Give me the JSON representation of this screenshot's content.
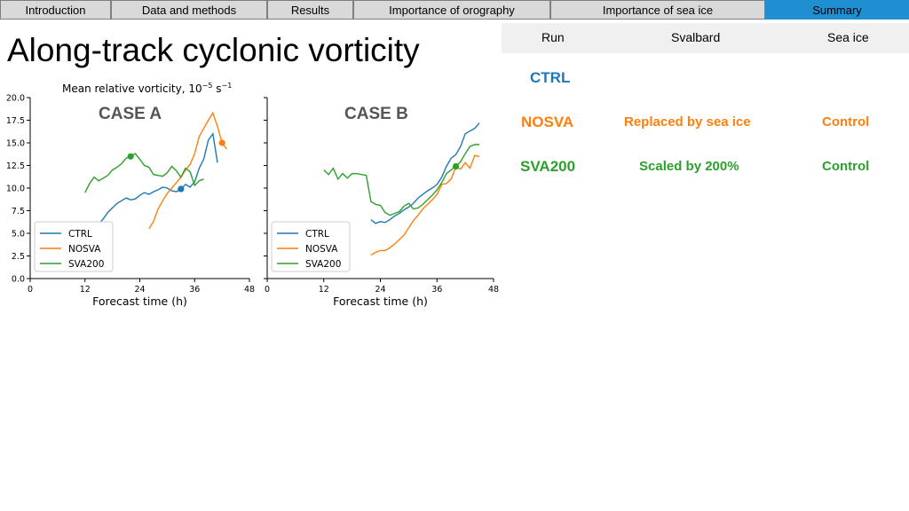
{
  "nav": {
    "tabs": [
      {
        "label": "Introduction"
      },
      {
        "label": "Data and methods"
      },
      {
        "label": "Results"
      },
      {
        "label": "Importance of orography"
      },
      {
        "label": "Importance of sea ice"
      },
      {
        "label": "Summary"
      }
    ],
    "active_index": 5
  },
  "slide": {
    "title": "Along-track cyclonic vorticity"
  },
  "plot_title": {
    "main": "Mean relative vorticity, 10",
    "exp": "−5",
    "unit": " s",
    "unit_exp": "−1"
  },
  "table": {
    "headers": [
      "Run",
      "Svalbard",
      "Sea ice"
    ],
    "rows": [
      {
        "run": "CTRL",
        "svalbard": "",
        "sea_ice": "",
        "color": "#1f77b4"
      },
      {
        "run": "NOSVA",
        "svalbard": "Replaced by sea ice",
        "sea_ice": "Control",
        "color": "#ff7f0e"
      },
      {
        "run": "SVA200",
        "svalbard": "Scaled by 200%",
        "sea_ice": "Control",
        "color": "#2ca02c"
      }
    ]
  },
  "colors": {
    "CTRL": "#1f77b4",
    "NOSVA": "#ff7f0e",
    "SVA200": "#2ca02c",
    "accent_tab": "#1f8fd1"
  },
  "chart_data": [
    {
      "type": "line",
      "title": "Mean relative vorticity, 10^−5 s^−1",
      "annotation": "CASE A",
      "xlabel": "Forecast time (h)",
      "ylabel": "",
      "xlim": [
        0,
        48
      ],
      "ylim": [
        0,
        20
      ],
      "xticks": [
        0,
        12,
        24,
        36,
        48
      ],
      "yticks": [
        0.0,
        2.5,
        5.0,
        7.5,
        10.0,
        12.5,
        15.0,
        17.5,
        20.0
      ],
      "legend": "lower-left",
      "series": [
        {
          "name": "CTRL",
          "marker_index": 20,
          "x": [
            13,
            14,
            15,
            16,
            17,
            18,
            19,
            20,
            21,
            22,
            23,
            24,
            25,
            26,
            27,
            28,
            29,
            30,
            31,
            32,
            33,
            34,
            35,
            36,
            37,
            38,
            39,
            40,
            41,
            42,
            43
          ],
          "y": [
            5.3,
            5.6,
            6.0,
            6.6,
            7.3,
            7.8,
            8.3,
            8.6,
            8.9,
            8.7,
            8.8,
            9.2,
            9.5,
            9.3,
            9.6,
            9.8,
            10.1,
            10.0,
            9.7,
            9.6,
            9.9,
            10.4,
            10.1,
            10.7,
            12.2,
            13.2,
            15.3,
            16.0,
            12.8,
            null,
            null
          ]
        },
        {
          "name": "NOSVA",
          "marker_index": 16,
          "x": [
            26,
            27,
            28,
            29,
            30,
            31,
            32,
            33,
            34,
            35,
            36,
            37,
            38,
            39,
            40,
            41,
            42,
            43,
            44
          ],
          "y": [
            5.5,
            6.3,
            7.7,
            8.6,
            9.4,
            10.0,
            10.6,
            11.2,
            12.0,
            12.6,
            13.8,
            15.7,
            16.6,
            17.5,
            18.3,
            16.8,
            15.0,
            14.3,
            null
          ]
        },
        {
          "name": "SVA200",
          "marker_index": 10,
          "x": [
            12,
            13,
            14,
            15,
            16,
            17,
            18,
            19,
            20,
            21,
            22,
            23,
            24,
            25,
            26,
            27,
            28,
            29,
            30,
            31,
            32,
            33,
            34,
            35,
            36,
            37,
            38,
            39,
            40,
            41,
            42
          ],
          "y": [
            9.5,
            10.5,
            11.2,
            10.8,
            11.1,
            11.4,
            12.0,
            12.3,
            12.7,
            13.3,
            13.5,
            13.8,
            13.2,
            12.5,
            12.3,
            11.5,
            11.4,
            11.3,
            11.7,
            12.4,
            11.9,
            11.2,
            12.2,
            11.8,
            10.3,
            10.8,
            11.0,
            null,
            null,
            null,
            null
          ]
        }
      ]
    },
    {
      "type": "line",
      "annotation": "CASE B",
      "xlabel": "Forecast time (h)",
      "ylabel": "",
      "xlim": [
        0,
        48
      ],
      "ylim": [
        0,
        20
      ],
      "xticks": [
        0,
        12,
        24,
        36,
        48
      ],
      "yticks": [],
      "legend": "lower-left",
      "series": [
        {
          "name": "CTRL",
          "marker_index": 26,
          "x": [
            22,
            23,
            24,
            25,
            26,
            27,
            28,
            29,
            30,
            31,
            32,
            33,
            34,
            35,
            36,
            37,
            38,
            39,
            40,
            41,
            42,
            43,
            44,
            45,
            46,
            47,
            48
          ],
          "y": [
            6.5,
            6.1,
            6.3,
            6.2,
            6.5,
            6.9,
            7.2,
            7.6,
            7.9,
            8.3,
            8.9,
            9.3,
            9.7,
            10.0,
            10.4,
            11.2,
            12.4,
            13.3,
            13.7,
            14.6,
            16.0,
            16.3,
            16.6,
            17.2,
            null,
            null,
            null
          ]
        },
        {
          "name": "NOSVA",
          "marker_index": 25,
          "x": [
            22,
            23,
            24,
            25,
            26,
            27,
            28,
            29,
            30,
            31,
            32,
            33,
            34,
            35,
            36,
            37,
            38,
            39,
            40,
            41,
            42,
            43,
            44,
            45,
            46,
            47
          ],
          "y": [
            2.6,
            2.9,
            3.1,
            3.1,
            3.4,
            3.8,
            4.3,
            4.8,
            5.6,
            6.4,
            7.0,
            7.7,
            8.2,
            8.7,
            9.3,
            10.4,
            10.5,
            11.0,
            12.3,
            12.1,
            12.8,
            12.2,
            13.6,
            13.5,
            null,
            null
          ]
        },
        {
          "name": "SVA200",
          "marker_index": 28,
          "x": [
            12,
            13,
            14,
            15,
            16,
            17,
            18,
            19,
            20,
            21,
            22,
            23,
            24,
            25,
            26,
            27,
            28,
            29,
            30,
            31,
            32,
            33,
            34,
            35,
            36,
            37,
            38,
            39,
            40,
            41,
            42,
            43,
            44,
            45,
            46,
            47,
            48
          ],
          "y": [
            12.0,
            11.5,
            12.2,
            11.0,
            11.6,
            11.1,
            11.6,
            11.6,
            11.5,
            11.4,
            8.5,
            8.2,
            8.1,
            7.3,
            7.0,
            7.2,
            7.4,
            8.0,
            8.3,
            7.7,
            7.8,
            8.2,
            8.7,
            9.2,
            9.8,
            10.6,
            11.6,
            12.0,
            12.4,
            12.9,
            13.8,
            14.6,
            14.8,
            14.8,
            null,
            null,
            null
          ]
        }
      ]
    }
  ]
}
